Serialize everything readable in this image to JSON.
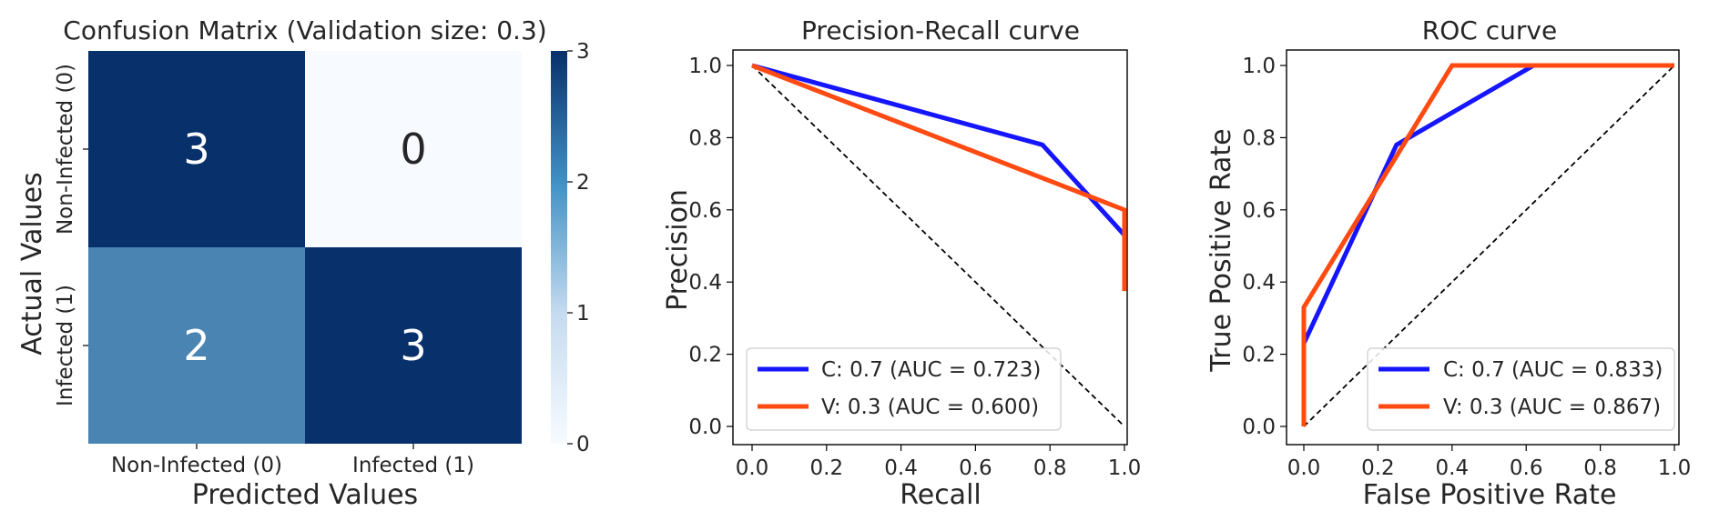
{
  "chart_data": [
    {
      "type": "heatmap",
      "title": "Confusion Matrix (Validation size: 0.3)",
      "xlabel": "Predicted Values",
      "ylabel": "Actual Values",
      "x_categories": [
        "Non-Infected (0)",
        "Infected (1)"
      ],
      "y_categories": [
        "Non-Infected (0)",
        "Infected (1)"
      ],
      "values": [
        [
          3,
          0
        ],
        [
          2,
          3
        ]
      ],
      "colorbar": {
        "min": 0,
        "max": 3,
        "ticks": [
          "0",
          "1",
          "2",
          "3"
        ]
      },
      "colors": {
        "low": "#f7fbff",
        "mid": "#6baed6",
        "high": "#08306b"
      },
      "grid": false
    },
    {
      "type": "line",
      "title": "Precision-Recall curve",
      "xlabel": "Recall",
      "ylabel": "Precision",
      "xlim": [
        0.0,
        1.0
      ],
      "ylim": [
        0.0,
        1.0
      ],
      "xticks": [
        "0.0",
        "0.2",
        "0.4",
        "0.6",
        "0.8",
        "1.0"
      ],
      "yticks": [
        "0.0",
        "0.2",
        "0.4",
        "0.6",
        "0.8",
        "1.0"
      ],
      "grid": false,
      "legend_position": "lower-left",
      "series": [
        {
          "name": "C: 0.7 (AUC = 0.723)",
          "color": "#1515ff",
          "x": [
            0.0,
            0.78,
            1.0,
            1.0
          ],
          "y": [
            1.0,
            0.78,
            0.53,
            0.53
          ]
        },
        {
          "name": "V: 0.3 (AUC = 0.600)",
          "color": "#ff4a12",
          "x": [
            0.0,
            1.0,
            1.0
          ],
          "y": [
            1.0,
            0.6,
            0.375
          ]
        }
      ],
      "reference_line": {
        "x": [
          0.0,
          1.0
        ],
        "y": [
          1.0,
          0.0
        ],
        "style": "dashed",
        "color": "#000000"
      }
    },
    {
      "type": "line",
      "title": "ROC curve",
      "xlabel": "False Positive Rate",
      "ylabel": "True Positive Rate",
      "xlim": [
        0.0,
        1.0
      ],
      "ylim": [
        0.0,
        1.0
      ],
      "xticks": [
        "0.0",
        "0.2",
        "0.4",
        "0.6",
        "0.8",
        "1.0"
      ],
      "yticks": [
        "0.0",
        "0.2",
        "0.4",
        "0.6",
        "0.8",
        "1.0"
      ],
      "grid": false,
      "legend_position": "lower-right",
      "series": [
        {
          "name": "C: 0.7 (AUC = 0.833)",
          "color": "#1515ff",
          "x": [
            0.0,
            0.0,
            0.25,
            0.62,
            1.0
          ],
          "y": [
            0.0,
            0.23,
            0.78,
            1.0,
            1.0
          ]
        },
        {
          "name": "V: 0.3 (AUC = 0.867)",
          "color": "#ff4a12",
          "x": [
            0.0,
            0.0,
            0.4,
            1.0
          ],
          "y": [
            0.0,
            0.33,
            1.0,
            1.0
          ]
        }
      ],
      "reference_line": {
        "x": [
          0.0,
          1.0
        ],
        "y": [
          0.0,
          1.0
        ],
        "style": "dashed",
        "color": "#000000"
      }
    }
  ]
}
